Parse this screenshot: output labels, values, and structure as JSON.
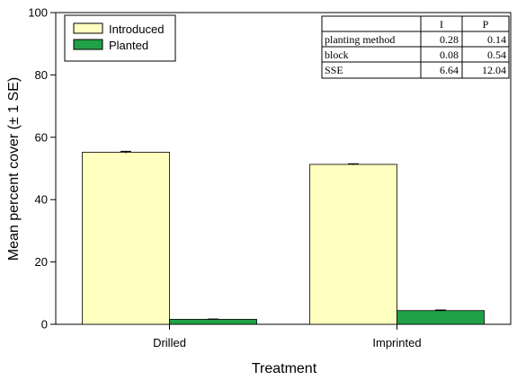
{
  "chart_data": {
    "type": "bar",
    "title": "",
    "xlabel": "Treatment",
    "ylabel": "Mean percent cover (± 1 SE)",
    "ylim": [
      0,
      100
    ],
    "yticks": [
      0,
      20,
      40,
      60,
      80,
      100
    ],
    "categories": [
      "Drilled",
      "Imprinted"
    ],
    "series": [
      {
        "name": "Introduced",
        "color": "#ffffc0",
        "values": [
          55.2,
          51.3
        ],
        "errors": [
          0.3,
          0.2
        ]
      },
      {
        "name": "Planted",
        "color": "#21a147",
        "values": [
          1.6,
          4.4
        ],
        "errors": [
          0.1,
          0.2
        ]
      }
    ],
    "legend_placement": "top-left",
    "grid": false,
    "stats_table": {
      "headers": [
        "",
        "I",
        "P"
      ],
      "rows": [
        [
          "planting method",
          "0.28",
          "0.14"
        ],
        [
          "block",
          "0.08",
          "0.54"
        ],
        [
          "SSE",
          "6.64",
          "12.04"
        ]
      ]
    }
  }
}
